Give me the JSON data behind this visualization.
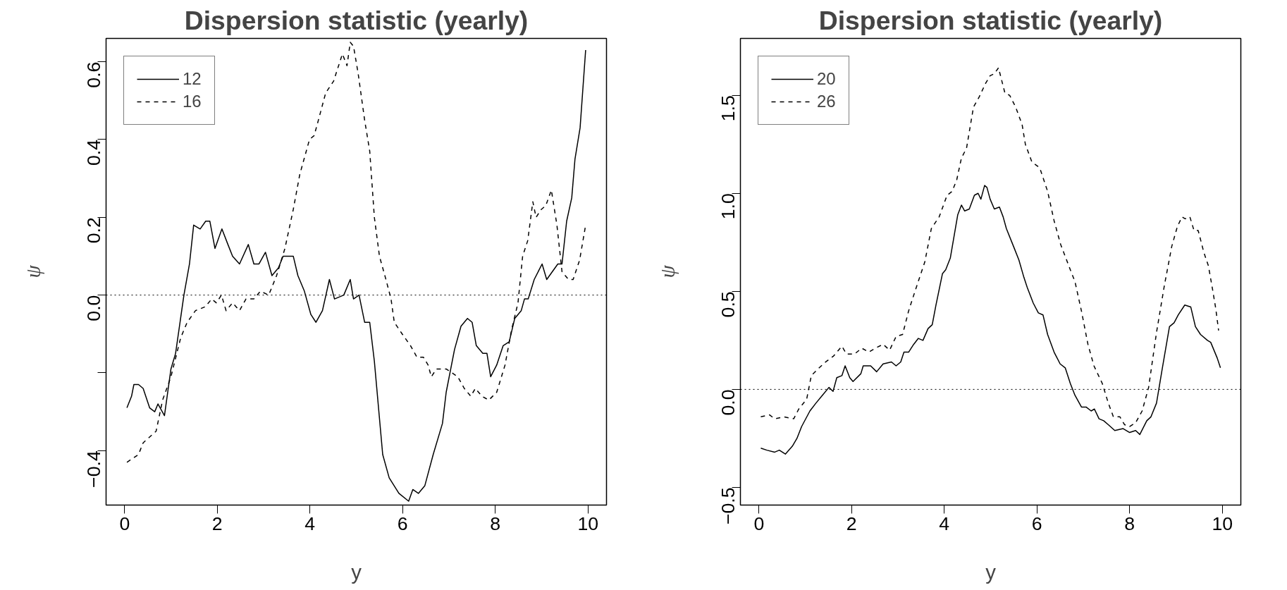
{
  "chart_data": [
    {
      "type": "line",
      "title": "Dispersion statistic (yearly)",
      "xlabel": "y",
      "ylabel": "ψ",
      "legend": "top left",
      "grid": false,
      "xlim": [
        -0.4,
        10.4
      ],
      "ylim": [
        -0.54,
        0.66
      ],
      "xticks": [
        0,
        2,
        4,
        6,
        8,
        10
      ],
      "yticks": [
        {
          "value": -0.4,
          "label": "−0.4"
        },
        {
          "value": -0.2,
          "label": null
        },
        {
          "value": 0,
          "label": "0.0"
        },
        {
          "value": 0.2,
          "label": "0.2"
        },
        {
          "value": 0.4,
          "label": "0.4"
        },
        {
          "value": 0.6,
          "label": "0.6"
        }
      ],
      "ref_lines": [
        {
          "axis": "y",
          "value": 0,
          "label": null,
          "line_style": "dotted",
          "color": "#000000"
        }
      ],
      "series": [
        {
          "name": "12",
          "color": "#000000",
          "line_style": "solid",
          "x": [
            0.05,
            0.15,
            0.2,
            0.3,
            0.4,
            0.54,
            0.65,
            0.72,
            0.86,
            1.0,
            1.1,
            1.28,
            1.4,
            1.49,
            1.63,
            1.75,
            1.84,
            1.95,
            2.1,
            2.23,
            2.33,
            2.48,
            2.67,
            2.79,
            2.9,
            3.04,
            3.18,
            3.32,
            3.42,
            3.64,
            3.74,
            3.88,
            4.02,
            4.13,
            4.27,
            4.42,
            4.53,
            4.73,
            4.87,
            4.94,
            5.06,
            5.18,
            5.29,
            5.39,
            5.57,
            5.71,
            5.92,
            6.13,
            6.22,
            6.34,
            6.48,
            6.66,
            6.86,
            6.94,
            7.12,
            7.26,
            7.4,
            7.5,
            7.59,
            7.73,
            7.82,
            7.9,
            8.03,
            8.17,
            8.3,
            8.42,
            8.56,
            8.63,
            8.71,
            8.84,
            9.01,
            9.11,
            9.23,
            9.35,
            9.44,
            9.54,
            9.65,
            9.72,
            9.83,
            9.95
          ],
          "values": [
            -0.29,
            -0.26,
            -0.23,
            -0.23,
            -0.24,
            -0.29,
            -0.3,
            -0.28,
            -0.31,
            -0.19,
            -0.15,
            0.0,
            0.08,
            0.18,
            0.17,
            0.19,
            0.19,
            0.12,
            0.17,
            0.13,
            0.1,
            0.08,
            0.13,
            0.08,
            0.08,
            0.11,
            0.05,
            0.07,
            0.1,
            0.1,
            0.05,
            0.01,
            -0.05,
            -0.07,
            -0.04,
            0.04,
            -0.01,
            0.0,
            0.04,
            -0.01,
            0.0,
            -0.07,
            -0.07,
            -0.17,
            -0.41,
            -0.47,
            -0.51,
            -0.53,
            -0.5,
            -0.51,
            -0.49,
            -0.41,
            -0.33,
            -0.25,
            -0.14,
            -0.08,
            -0.06,
            -0.07,
            -0.13,
            -0.15,
            -0.15,
            -0.21,
            -0.18,
            -0.13,
            -0.12,
            -0.06,
            -0.04,
            -0.01,
            -0.01,
            0.04,
            0.08,
            0.04,
            0.06,
            0.08,
            0.08,
            0.19,
            0.25,
            0.35,
            0.43,
            0.63
          ]
        },
        {
          "name": "16",
          "color": "#000000",
          "line_style": "dashed",
          "x": [
            0.05,
            0.3,
            0.4,
            0.68,
            0.82,
            1.0,
            1.21,
            1.35,
            1.53,
            1.74,
            1.88,
            1.98,
            2.09,
            2.19,
            2.33,
            2.48,
            2.62,
            2.79,
            2.93,
            3.11,
            3.28,
            3.46,
            3.64,
            3.78,
            3.99,
            4.09,
            4.16,
            4.34,
            4.51,
            4.7,
            4.8,
            4.87,
            4.94,
            5.04,
            5.18,
            5.29,
            5.39,
            5.5,
            5.64,
            5.75,
            5.82,
            5.99,
            6.17,
            6.31,
            6.45,
            6.55,
            6.62,
            6.73,
            6.94,
            7.19,
            7.33,
            7.47,
            7.57,
            7.71,
            7.86,
            8.03,
            8.21,
            8.35,
            8.49,
            8.59,
            8.7,
            8.81,
            8.88,
            8.99,
            9.09,
            9.21,
            9.33,
            9.44,
            9.58,
            9.68,
            9.82,
            9.95
          ],
          "values": [
            -0.43,
            -0.41,
            -0.38,
            -0.35,
            -0.27,
            -0.21,
            -0.11,
            -0.07,
            -0.04,
            -0.03,
            -0.01,
            -0.02,
            0.0,
            -0.04,
            -0.02,
            -0.04,
            -0.01,
            -0.01,
            0.01,
            0.0,
            0.05,
            0.12,
            0.22,
            0.31,
            0.4,
            0.41,
            0.44,
            0.52,
            0.55,
            0.62,
            0.59,
            0.65,
            0.64,
            0.57,
            0.45,
            0.37,
            0.2,
            0.1,
            0.04,
            -0.01,
            -0.07,
            -0.1,
            -0.13,
            -0.16,
            -0.16,
            -0.18,
            -0.21,
            -0.19,
            -0.19,
            -0.21,
            -0.24,
            -0.26,
            -0.24,
            -0.26,
            -0.27,
            -0.25,
            -0.18,
            -0.09,
            -0.02,
            0.1,
            0.14,
            0.24,
            0.2,
            0.22,
            0.23,
            0.27,
            0.18,
            0.06,
            0.04,
            0.04,
            0.09,
            0.18
          ]
        }
      ]
    },
    {
      "type": "line",
      "title": "Dispersion statistic (yearly)",
      "xlabel": "y",
      "ylabel": "ψ",
      "legend": "top left",
      "grid": false,
      "xlim": [
        -0.4,
        10.4
      ],
      "ylim": [
        -0.59,
        1.79
      ],
      "xticks": [
        0,
        2,
        4,
        6,
        8,
        10
      ],
      "yticks": [
        {
          "value": -0.5,
          "label": "−0.5"
        },
        {
          "value": 0,
          "label": "0.0"
        },
        {
          "value": 0.5,
          "label": "0.5"
        },
        {
          "value": 1,
          "label": "1.0"
        },
        {
          "value": 1.5,
          "label": "1.5"
        }
      ],
      "ref_lines": [
        {
          "axis": "y",
          "value": 0,
          "label": null,
          "line_style": "dotted",
          "color": "#000000"
        }
      ],
      "series": [
        {
          "name": "20",
          "color": "#000000",
          "line_style": "solid",
          "x": [
            0.04,
            0.17,
            0.34,
            0.44,
            0.57,
            0.72,
            0.82,
            0.92,
            1.1,
            1.23,
            1.37,
            1.51,
            1.6,
            1.68,
            1.79,
            1.86,
            1.96,
            2.03,
            2.2,
            2.25,
            2.41,
            2.54,
            2.68,
            2.86,
            2.96,
            3.06,
            3.13,
            3.23,
            3.34,
            3.44,
            3.54,
            3.65,
            3.74,
            3.82,
            3.96,
            4.03,
            4.13,
            4.29,
            4.37,
            4.44,
            4.54,
            4.65,
            4.73,
            4.79,
            4.87,
            4.92,
            4.99,
            5.08,
            5.19,
            5.27,
            5.34,
            5.51,
            5.61,
            5.72,
            5.79,
            5.92,
            6.03,
            6.13,
            6.23,
            6.37,
            6.5,
            6.61,
            6.72,
            6.82,
            6.96,
            7.06,
            7.17,
            7.24,
            7.34,
            7.44,
            7.54,
            7.68,
            7.86,
            8.0,
            8.13,
            8.22,
            8.37,
            8.46,
            8.58,
            8.7,
            8.86,
            8.96,
            9.05,
            9.19,
            9.32,
            9.42,
            9.53,
            9.68,
            9.75,
            9.89,
            9.96
          ],
          "values": [
            -0.3,
            -0.31,
            -0.32,
            -0.31,
            -0.33,
            -0.29,
            -0.25,
            -0.19,
            -0.11,
            -0.07,
            -0.03,
            0.01,
            -0.01,
            0.06,
            0.07,
            0.12,
            0.06,
            0.04,
            0.08,
            0.12,
            0.12,
            0.09,
            0.13,
            0.14,
            0.12,
            0.14,
            0.19,
            0.19,
            0.23,
            0.26,
            0.25,
            0.31,
            0.33,
            0.43,
            0.59,
            0.61,
            0.67,
            0.89,
            0.94,
            0.91,
            0.92,
            0.99,
            1.0,
            0.97,
            1.04,
            1.03,
            0.97,
            0.92,
            0.93,
            0.88,
            0.82,
            0.72,
            0.66,
            0.57,
            0.52,
            0.44,
            0.39,
            0.38,
            0.28,
            0.19,
            0.13,
            0.11,
            0.03,
            -0.03,
            -0.09,
            -0.09,
            -0.11,
            -0.1,
            -0.15,
            -0.16,
            -0.18,
            -0.21,
            -0.2,
            -0.22,
            -0.21,
            -0.23,
            -0.16,
            -0.14,
            -0.07,
            0.1,
            0.32,
            0.34,
            0.38,
            0.43,
            0.42,
            0.32,
            0.28,
            0.25,
            0.24,
            0.16,
            0.11
          ]
        },
        {
          "name": "26",
          "color": "#000000",
          "line_style": "dashed",
          "x": [
            0.04,
            0.23,
            0.34,
            0.54,
            0.75,
            0.86,
            1.03,
            1.13,
            1.3,
            1.44,
            1.61,
            1.79,
            1.89,
            2.06,
            2.22,
            2.37,
            2.51,
            2.68,
            2.82,
            2.96,
            3.1,
            3.23,
            3.34,
            3.48,
            3.58,
            3.72,
            3.89,
            4.06,
            4.17,
            4.27,
            4.37,
            4.48,
            4.63,
            4.75,
            4.89,
            4.99,
            5.08,
            5.17,
            5.31,
            5.41,
            5.54,
            5.68,
            5.75,
            5.89,
            6.06,
            6.23,
            6.37,
            6.51,
            6.72,
            6.82,
            6.96,
            7.1,
            7.23,
            7.41,
            7.54,
            7.65,
            7.79,
            7.89,
            8.0,
            8.13,
            8.27,
            8.41,
            8.58,
            8.75,
            8.91,
            9.03,
            9.13,
            9.2,
            9.3,
            9.39,
            9.48,
            9.6,
            9.7,
            9.79,
            9.86,
            9.92
          ],
          "values": [
            -0.14,
            -0.13,
            -0.15,
            -0.14,
            -0.15,
            -0.1,
            -0.05,
            0.07,
            0.11,
            0.14,
            0.17,
            0.22,
            0.18,
            0.18,
            0.21,
            0.19,
            0.21,
            0.23,
            0.2,
            0.27,
            0.28,
            0.4,
            0.48,
            0.58,
            0.65,
            0.82,
            0.88,
            0.99,
            1.01,
            1.07,
            1.18,
            1.23,
            1.44,
            1.49,
            1.56,
            1.6,
            1.61,
            1.64,
            1.51,
            1.5,
            1.44,
            1.35,
            1.25,
            1.16,
            1.13,
            1.01,
            0.86,
            0.74,
            0.61,
            0.55,
            0.4,
            0.23,
            0.12,
            0.03,
            -0.07,
            -0.14,
            -0.14,
            -0.18,
            -0.19,
            -0.17,
            -0.11,
            0.01,
            0.29,
            0.53,
            0.73,
            0.83,
            0.88,
            0.87,
            0.88,
            0.81,
            0.81,
            0.7,
            0.63,
            0.51,
            0.41,
            0.3
          ]
        }
      ]
    }
  ]
}
